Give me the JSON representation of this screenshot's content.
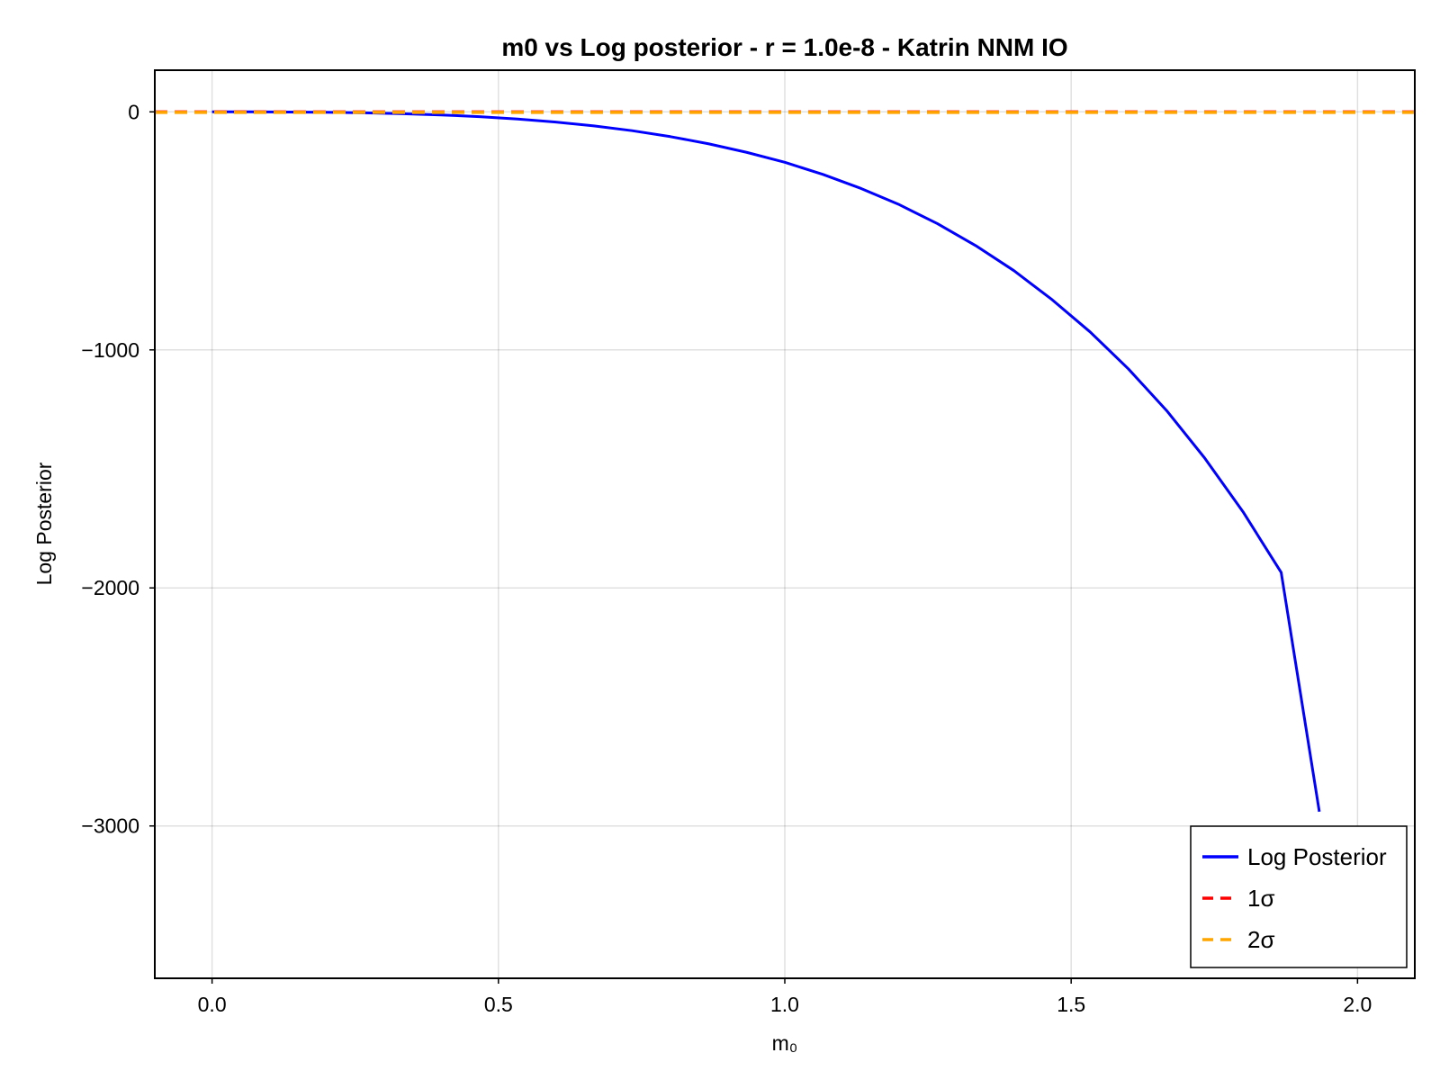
{
  "chart_data": {
    "type": "line",
    "title": "m0 vs Log posterior - r = 1.0e-8 - Katrin NNM IO",
    "xlabel": "m₀",
    "ylabel": "Log Posterior",
    "xlim": [
      -0.1,
      2.1
    ],
    "ylim": [
      -3640,
      175
    ],
    "x_ticks": [
      0.0,
      0.5,
      1.0,
      1.5,
      2.0
    ],
    "x_tick_labels": [
      "0.0",
      "0.5",
      "1.0",
      "1.5",
      "2.0"
    ],
    "y_ticks": [
      0,
      -1000,
      -2000,
      -3000
    ],
    "y_tick_labels": [
      "0",
      "−1000",
      "−2000",
      "−3000"
    ],
    "grid": true,
    "legend_position": "bottom-right",
    "series": [
      {
        "name": "Log Posterior",
        "color": "#0000ff",
        "style": "solid",
        "x": [
          0.0,
          0.0667,
          0.1333,
          0.2,
          0.2667,
          0.3333,
          0.4,
          0.4667,
          0.5333,
          0.6,
          0.6667,
          0.7333,
          0.8,
          0.8667,
          0.9333,
          1.0,
          1.0667,
          1.1333,
          1.2,
          1.2667,
          1.3333,
          1.4,
          1.4667,
          1.5333,
          1.6,
          1.6667,
          1.7333,
          1.8,
          1.8667,
          1.9333
        ],
        "y": [
          0,
          0,
          -1,
          -2,
          -4,
          -8,
          -13,
          -20,
          -30,
          -43,
          -59,
          -79,
          -104,
          -134,
          -170,
          -212,
          -263,
          -322,
          -390,
          -470,
          -562,
          -667,
          -789,
          -925,
          -1080,
          -1255,
          -1455,
          -1680,
          -1935,
          -2940
        ]
      },
      {
        "name": "1σ",
        "color": "#ff0000",
        "style": "dashed",
        "y_const": -0.5
      },
      {
        "name": "2σ",
        "color": "#ffa500",
        "style": "dashed",
        "y_const": -2.0
      }
    ]
  }
}
